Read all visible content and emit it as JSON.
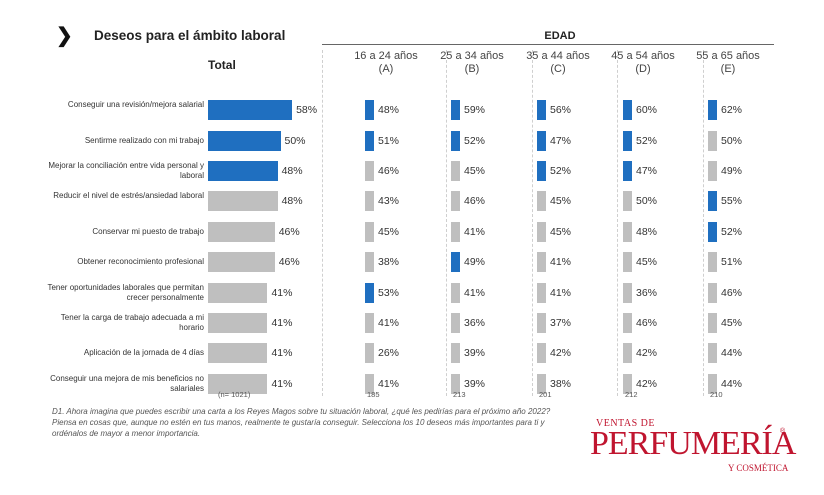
{
  "title": "Deseos para el ámbito laboral",
  "total_header": "Total",
  "edad_header": "EDAD",
  "colors": {
    "highlight": "#1f6fc0",
    "normal": "#bfbfbf"
  },
  "chart_data": {
    "type": "bar",
    "categories": [
      "Conseguir una revisión/mejora salarial",
      "Sentirme realizado con mi trabajo",
      "Mejorar la conciliación entre vida personal y laboral",
      "Reducir el nivel de estrés/ansiedad laboral",
      "Conservar mi puesto de trabajo",
      "Obtener reconocimiento profesional",
      "Tener oportunidades laborales que permitan crecer personalmente",
      "Tener la carga de trabajo adecuada a mi horario",
      "Aplicación de la jornada de 4 días",
      "Conseguir una mejora de mis beneficios no salariales"
    ],
    "total": {
      "name": "Total",
      "values": [
        58,
        50,
        48,
        48,
        46,
        46,
        41,
        41,
        41,
        41
      ],
      "labels": [
        "58%",
        "50%",
        "48%",
        "48%",
        "46%",
        "46%",
        "41%",
        "41%",
        "41%",
        "41%"
      ],
      "highlight": [
        true,
        true,
        true,
        false,
        false,
        false,
        false,
        false,
        false,
        false
      ],
      "n": "(n= 1021)"
    },
    "series": [
      {
        "name": "16 a 24 años (A)",
        "values": [
          48,
          51,
          46,
          43,
          45,
          38,
          53,
          41,
          26,
          41
        ],
        "labels": [
          "48%",
          "51%",
          "46%",
          "43%",
          "45%",
          "38%",
          "53%",
          "41%",
          "26%",
          "41%"
        ],
        "highlight": [
          true,
          true,
          false,
          false,
          false,
          false,
          true,
          false,
          false,
          false
        ],
        "n": "185"
      },
      {
        "name": "25 a 34 años (B)",
        "values": [
          59,
          52,
          45,
          46,
          41,
          49,
          41,
          36,
          39,
          39
        ],
        "labels": [
          "59%",
          "52%",
          "45%",
          "46%",
          "41%",
          "49%",
          "41%",
          "36%",
          "39%",
          "39%"
        ],
        "highlight": [
          true,
          true,
          false,
          false,
          false,
          true,
          false,
          false,
          false,
          false
        ],
        "n": "213"
      },
      {
        "name": "35 a 44 años (C)",
        "values": [
          56,
          47,
          52,
          45,
          45,
          41,
          41,
          37,
          42,
          38
        ],
        "labels": [
          "56%",
          "47%",
          "52%",
          "45%",
          "45%",
          "41%",
          "41%",
          "37%",
          "42%",
          "38%"
        ],
        "highlight": [
          true,
          true,
          true,
          false,
          false,
          false,
          false,
          false,
          false,
          false
        ],
        "n": "201"
      },
      {
        "name": "45 a 54 años (D)",
        "values": [
          60,
          52,
          47,
          50,
          48,
          45,
          36,
          46,
          42,
          42
        ],
        "labels": [
          "60%",
          "52%",
          "47%",
          "50%",
          "48%",
          "45%",
          "36%",
          "46%",
          "42%",
          "42%"
        ],
        "highlight": [
          true,
          true,
          true,
          false,
          false,
          false,
          false,
          false,
          false,
          false
        ],
        "n": "212"
      },
      {
        "name": "55 a 65 años (E)",
        "values": [
          62,
          50,
          49,
          55,
          52,
          51,
          46,
          45,
          44,
          44
        ],
        "labels": [
          "62%",
          "50%",
          "49%",
          "55%",
          "52%",
          "51%",
          "46%",
          "45%",
          "44%",
          "44%"
        ],
        "highlight": [
          true,
          false,
          false,
          true,
          true,
          false,
          false,
          false,
          false,
          false
        ],
        "n": "210"
      }
    ]
  },
  "footnote": "D1. Ahora imagina que puedes escribir una carta a los Reyes Magos sobre tu situación laboral, ¿qué les pedirías para el próximo año 2022? Piensa en cosas que, aunque no estén en tus manos, realmente te gustaría conseguir. Selecciona los 10 deseos más importantes para ti y ordénalos de mayor a menor importancia.",
  "logo": {
    "top": "VENTAS DE",
    "main": "PERFUMERÍA",
    "sub": "Y COSMÉTICA",
    "reg": "®"
  }
}
